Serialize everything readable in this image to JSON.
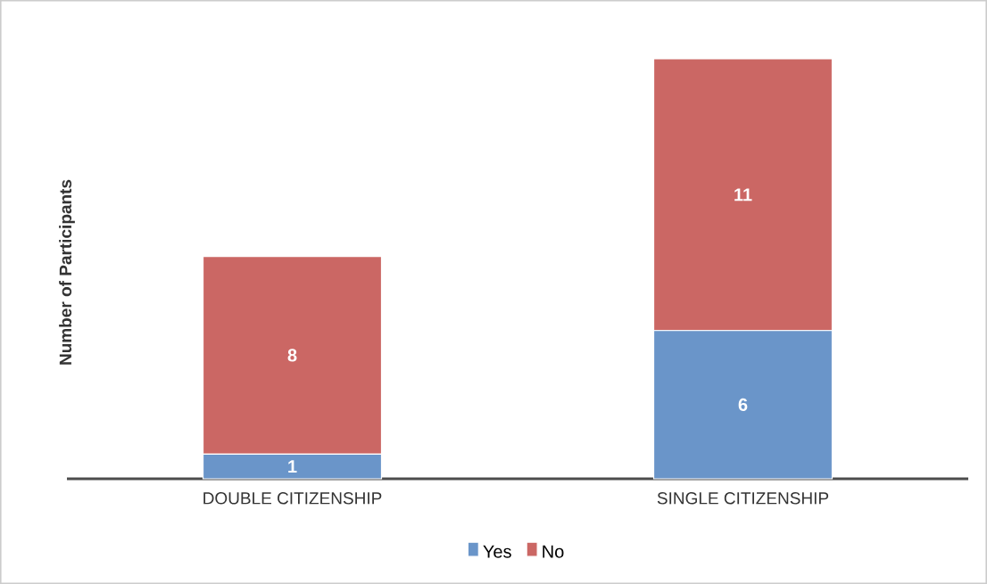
{
  "chart_data": {
    "type": "bar",
    "stacked": true,
    "ylabel": "Number of Participants",
    "categories": [
      "DOUBLE CITIZENSHIP",
      "SINGLE CITIZENSHIP"
    ],
    "series": [
      {
        "name": "Yes",
        "color": "#6a95c9",
        "values": [
          1,
          6
        ]
      },
      {
        "name": "No",
        "color": "#cb6764",
        "values": [
          8,
          11
        ]
      }
    ],
    "data_labels": true,
    "legend": "bottom",
    "grid": false
  }
}
